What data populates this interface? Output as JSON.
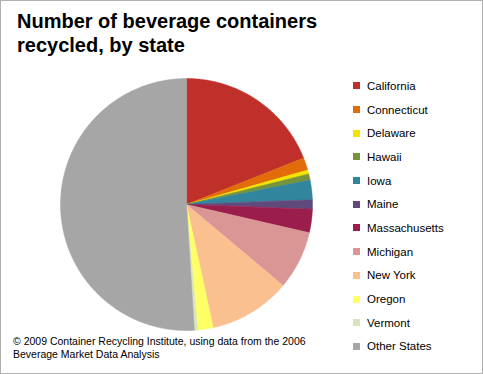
{
  "chart_data": {
    "type": "pie",
    "title": "Number of beverage containers recycled, by state",
    "caption": "© 2009 Container Recycling Institute, using data from the 2006 Beverage Market Data Analysis",
    "categories": [
      "California",
      "Connecticut",
      "Delaware",
      "Hawaii",
      "Iowa",
      "Maine",
      "Massachusetts",
      "Michigan",
      "New York",
      "Oregon",
      "Vermont",
      "Other States"
    ],
    "values": [
      19,
      1.6,
      0.5,
      0.8,
      2.5,
      1.2,
      3,
      7.5,
      10.5,
      2,
      0.4,
      51
    ],
    "colors": [
      "#c0302b",
      "#e36c0a",
      "#f5e400",
      "#77933c",
      "#31859c",
      "#604a7b",
      "#9b1d4b",
      "#d99694",
      "#fac090",
      "#ffff66",
      "#d7e4bd",
      "#a6a6a6"
    ],
    "legend": "right"
  }
}
